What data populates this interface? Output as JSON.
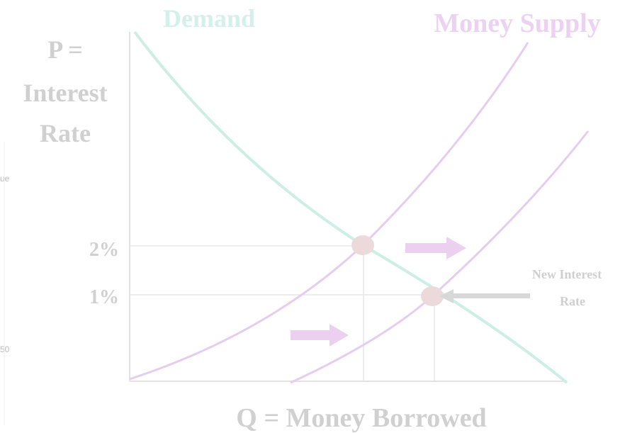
{
  "header": {
    "demand": "Demand",
    "supply": "Money Supply"
  },
  "y_axis": {
    "lines": [
      "P =",
      "Interest",
      "Rate"
    ],
    "ticks": [
      "2%",
      "1%"
    ]
  },
  "x_axis": {
    "label": "Q = Money Borrowed"
  },
  "annotation": {
    "lines": [
      "New Interest",
      "Rate"
    ]
  },
  "background": {
    "fragments": [
      "ue",
      "50"
    ]
  }
}
